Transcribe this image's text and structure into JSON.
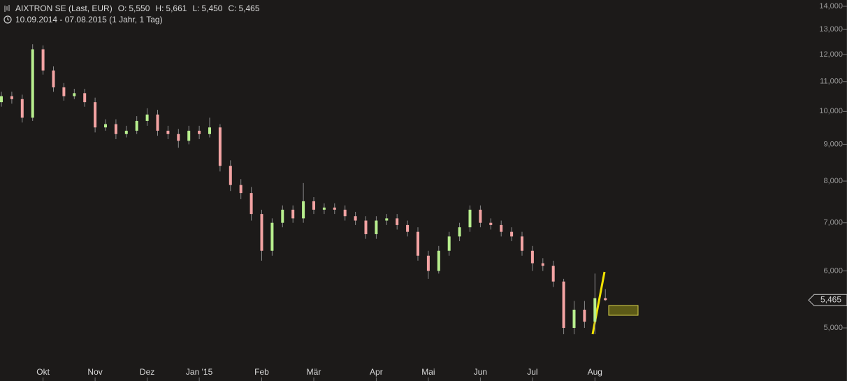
{
  "chart_data": {
    "type": "candlestick",
    "title": "AIXTRON SE (Last, EUR)",
    "subtitle": "10.09.2014 - 07.08.2015 (1 Jahr, 1 Tag)",
    "quote": [
      {
        "key": "O:",
        "value": "5,550"
      },
      {
        "key": "H:",
        "value": "5,661"
      },
      {
        "key": "L:",
        "value": "5,450"
      },
      {
        "key": "C:",
        "value": "5,465"
      }
    ],
    "last_price": {
      "value": 5465,
      "label": "5,465"
    },
    "log_scale": true,
    "up_color": "#b8ef8e",
    "down_color": "#f3a3a3",
    "ylim": [
      4461,
      14285
    ],
    "yticks": [
      {
        "value": 5000,
        "label": "5,000"
      },
      {
        "value": 6000,
        "label": "6,000"
      },
      {
        "value": 7000,
        "label": "7,000"
      },
      {
        "value": 8000,
        "label": "8,000"
      },
      {
        "value": 9000,
        "label": "9,000"
      },
      {
        "value": 10000,
        "label": "10,000"
      },
      {
        "value": 11000,
        "label": "11,000"
      },
      {
        "value": 12000,
        "label": "12,000"
      },
      {
        "value": 13000,
        "label": "13,000"
      },
      {
        "value": 14000,
        "label": "14,000"
      }
    ],
    "categories": [
      null,
      null,
      null,
      null,
      "Okt",
      null,
      null,
      null,
      null,
      "Nov",
      null,
      null,
      null,
      null,
      "Dez",
      null,
      null,
      null,
      null,
      "Jan '15",
      null,
      null,
      null,
      null,
      null,
      "Feb",
      null,
      null,
      null,
      null,
      "Mär",
      null,
      null,
      null,
      null,
      null,
      "Apr",
      null,
      null,
      null,
      null,
      "Mai",
      null,
      null,
      null,
      null,
      "Jun",
      null,
      null,
      null,
      null,
      "Jul",
      null,
      null,
      null,
      null,
      null,
      "Aug",
      null
    ],
    "open": [
      10300,
      10500,
      10400,
      9800,
      12200,
      11400,
      10800,
      10500,
      10600,
      10300,
      9500,
      9600,
      9300,
      9400,
      9700,
      9900,
      9400,
      9300,
      9100,
      9400,
      9300,
      9500,
      8400,
      7900,
      7700,
      7200,
      6400,
      7000,
      7300,
      7100,
      7500,
      7300,
      7350,
      7300,
      7150,
      7050,
      6750,
      7050,
      7100,
      6950,
      6800,
      6300,
      6000,
      6400,
      6700,
      6900,
      7300,
      7000,
      6950,
      6800,
      6700,
      6400,
      6150,
      6100,
      5800,
      5000,
      5300,
      5100,
      5500
    ],
    "high": [
      10650,
      10650,
      10550,
      12400,
      12350,
      11550,
      10950,
      10750,
      10750,
      10450,
      9750,
      9750,
      9550,
      9850,
      10100,
      10050,
      9550,
      9450,
      9550,
      9550,
      9800,
      9600,
      8550,
      8050,
      7850,
      7300,
      7100,
      7400,
      7400,
      7950,
      7600,
      7450,
      7450,
      7400,
      7250,
      7150,
      7150,
      7200,
      7200,
      7050,
      6900,
      6400,
      6500,
      6800,
      7000,
      7400,
      7400,
      7100,
      7050,
      6900,
      6800,
      6500,
      6250,
      6200,
      5850,
      5450,
      5450,
      5950,
      5661
    ],
    "low": [
      10150,
      10250,
      9650,
      9700,
      11250,
      10650,
      10350,
      10400,
      10150,
      9350,
      9400,
      9150,
      9200,
      9300,
      9550,
      9250,
      9150,
      8900,
      9000,
      9150,
      9200,
      8250,
      7750,
      7550,
      7050,
      6200,
      6300,
      6900,
      7000,
      7000,
      7200,
      7200,
      7200,
      7050,
      6950,
      6650,
      6650,
      6950,
      6850,
      6700,
      6200,
      5850,
      5950,
      6300,
      6600,
      6800,
      6900,
      6850,
      6700,
      6600,
      6300,
      6000,
      6000,
      5700,
      4900,
      4900,
      5000,
      4900,
      5450
    ],
    "close": [
      10500,
      10400,
      9800,
      12200,
      11400,
      10800,
      10500,
      10600,
      10300,
      9500,
      9600,
      9300,
      9400,
      9700,
      9900,
      9400,
      9300,
      9100,
      9400,
      9300,
      9500,
      8400,
      7900,
      7700,
      7200,
      6400,
      7000,
      7300,
      7100,
      7500,
      7300,
      7350,
      7300,
      7150,
      7050,
      6750,
      7050,
      7100,
      6950,
      6800,
      6300,
      6000,
      6400,
      6700,
      6900,
      7300,
      7000,
      6950,
      6800,
      6700,
      6400,
      6150,
      6100,
      5800,
      5000,
      5300,
      5100,
      5500,
      5465
    ]
  }
}
